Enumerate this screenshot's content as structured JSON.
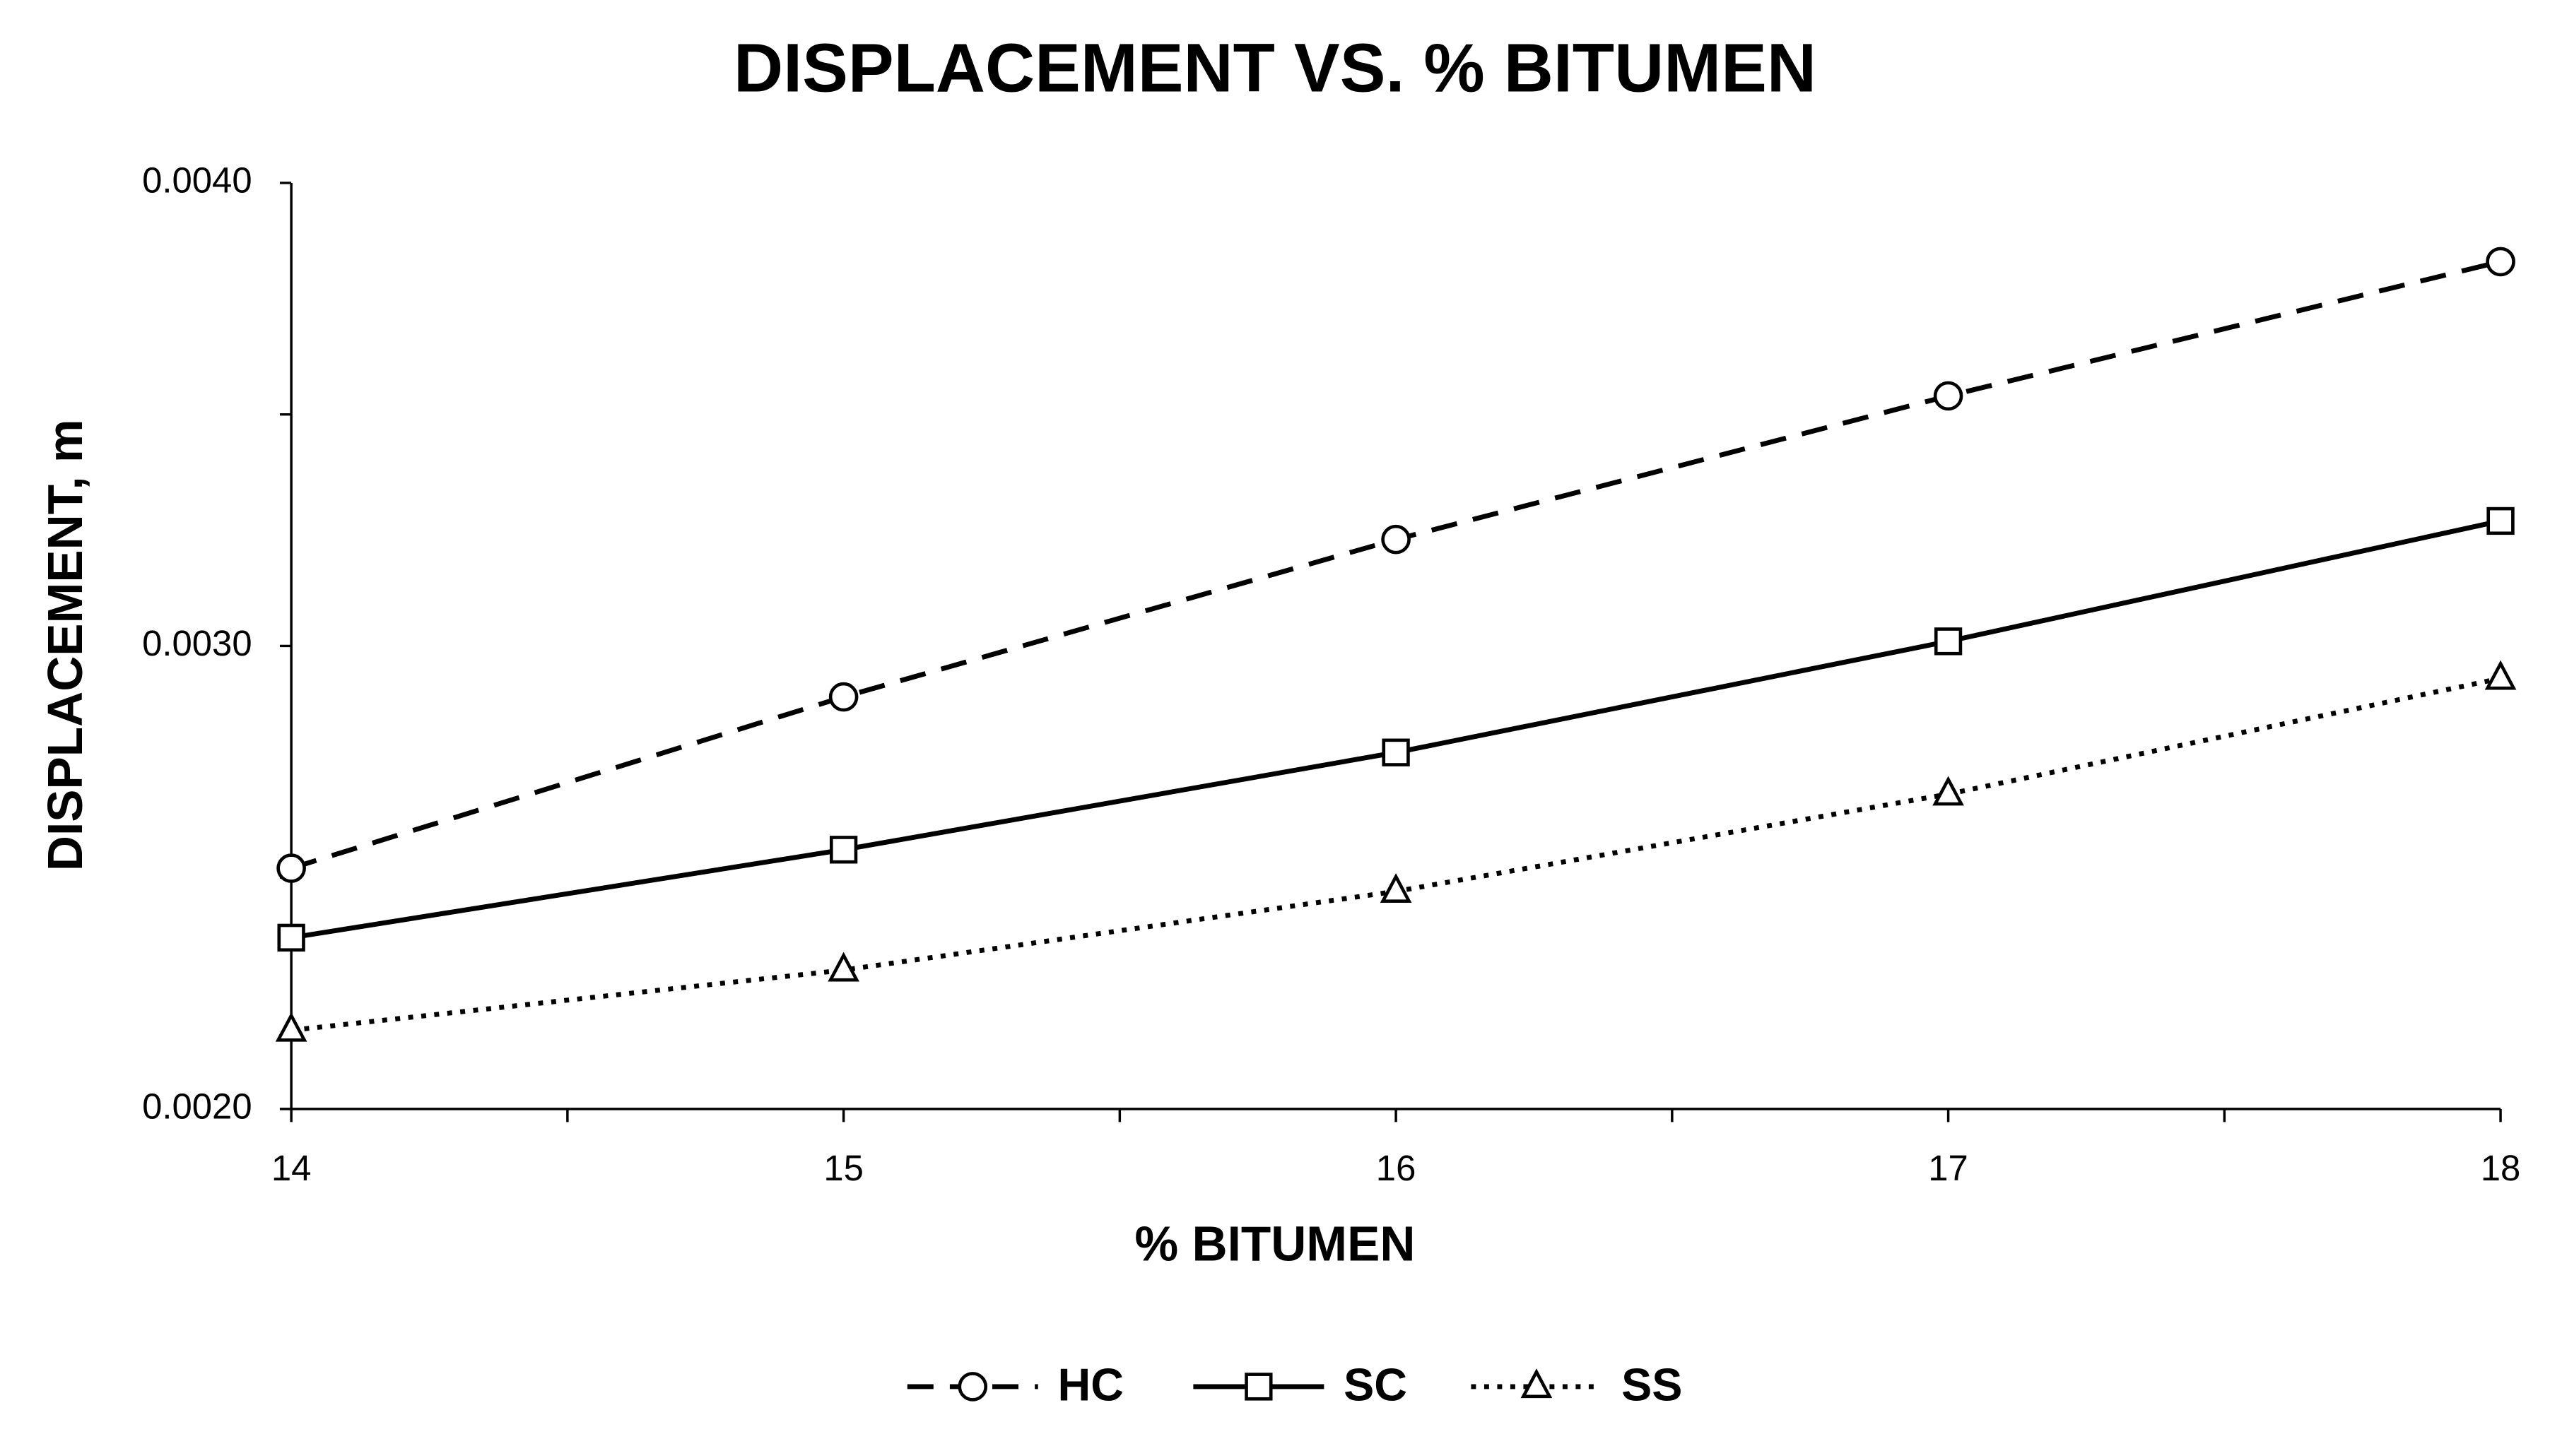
{
  "chart_data": {
    "type": "line",
    "title": "DISPLACEMENT VS. % BITUMEN",
    "x_label": "% BITUMEN",
    "y_label": "DISPLACEMENT, m",
    "x": [
      14,
      15,
      16,
      17,
      18
    ],
    "series": [
      {
        "name": "HC",
        "color": "#000000",
        "dash": "dashed",
        "marker": "circle",
        "values": [
          0.00252,
          0.00289,
          0.00323,
          0.00354,
          0.00383
        ]
      },
      {
        "name": "SC",
        "color": "#000000",
        "dash": "solid",
        "marker": "square",
        "values": [
          0.00237,
          0.00256,
          0.00277,
          0.00301,
          0.00327
        ]
      },
      {
        "name": "SS",
        "color": "#000000",
        "dash": "dotted",
        "marker": "triangle",
        "values": [
          0.00217,
          0.0023,
          0.00247,
          0.00268,
          0.00293
        ]
      }
    ],
    "xlim": [
      14,
      18
    ],
    "xticks": [
      14,
      15,
      16,
      17,
      18
    ],
    "xminor_ticks": [
      14.5,
      15.5,
      16.5,
      17.5
    ],
    "ylim": [
      0.002,
      0.004
    ],
    "yticks": [
      {
        "value": 0.002,
        "label": "0.0020"
      },
      {
        "value": 0.003,
        "label": "0.0030"
      },
      {
        "value": 0.004,
        "label": "0.0040"
      }
    ],
    "yminor_ticks": [
      0.0025,
      0.0035
    ],
    "grid": false,
    "legend": "bottom"
  }
}
